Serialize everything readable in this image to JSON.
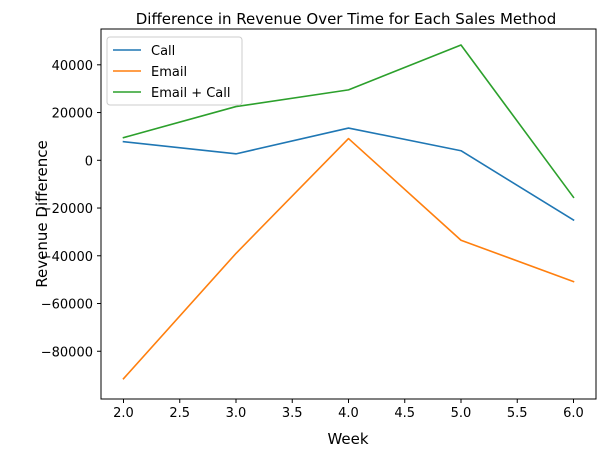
{
  "chart_data": {
    "type": "line",
    "title": "Difference in Revenue Over Time for Each Sales Method",
    "xlabel": "Week",
    "ylabel": "Revenue Difference",
    "x": [
      2,
      3,
      4,
      5,
      6
    ],
    "xlim": [
      1.8,
      6.2
    ],
    "ylim": [
      -100000,
      55000
    ],
    "xticks": [
      2.0,
      3.0,
      4.0,
      5.0,
      6.0
    ],
    "xticks_minor": [
      2.5,
      3.5,
      4.5,
      5.5
    ],
    "xtick_labels": [
      "2.0",
      "2.5",
      "3.0",
      "3.5",
      "4.0",
      "4.5",
      "5.0",
      "5.5",
      "6.0"
    ],
    "xtick_values": [
      2.0,
      2.5,
      3.0,
      3.5,
      4.0,
      4.5,
      5.0,
      5.5,
      6.0
    ],
    "ytick_values": [
      40000,
      20000,
      0,
      -20000,
      -40000,
      -60000,
      -80000
    ],
    "ytick_labels": [
      "40000",
      "20000",
      "0",
      "−20000",
      "−40000",
      "−60000",
      "−80000"
    ],
    "grid": false,
    "legend_position": "top-left",
    "series": [
      {
        "name": "Call",
        "color": "#1f77b4",
        "values": [
          7800,
          2700,
          13500,
          4000,
          -25000
        ]
      },
      {
        "name": "Email",
        "color": "#ff7f0e",
        "values": [
          -91500,
          -39000,
          9100,
          -33500,
          -50800
        ]
      },
      {
        "name": "Email + Call",
        "color": "#2ca02c",
        "values": [
          9500,
          22500,
          29500,
          48300,
          -15500
        ]
      }
    ]
  }
}
